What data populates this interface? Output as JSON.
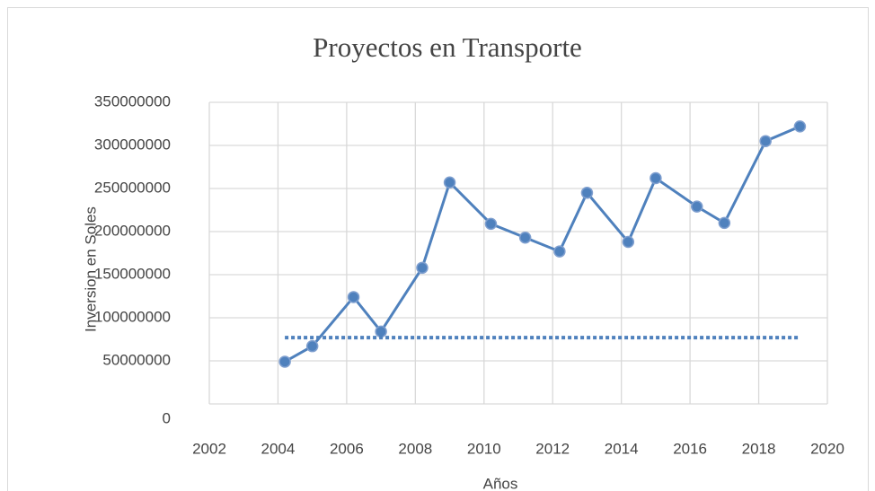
{
  "chart_data": {
    "type": "scatter",
    "title": "Proyectos en Transporte",
    "x_label": "Años",
    "y_label": "Inversion en Soles",
    "series": [
      {
        "color": "#4f81bd",
        "style": "solid",
        "x": [
          2004.2,
          2005.0,
          2006.2,
          2007.0,
          2008.2,
          2009.0,
          2010.2,
          2011.2,
          2012.2,
          2013.0,
          2014.2,
          2015.0,
          2016.2,
          2017.0,
          2018.2,
          2019.2
        ],
        "values": [
          49000000,
          67000000,
          124000000,
          84000000,
          158000000,
          257000000,
          209000000,
          193000000,
          177000000,
          245000000,
          188000000,
          262000000,
          229000000,
          210000000,
          305000000,
          322000000
        ]
      },
      {
        "color": "#4f81bd",
        "style": "dotted",
        "x": [
          2004.2,
          2019.2
        ],
        "values": [
          77000000,
          77000000
        ]
      }
    ],
    "xlim": [
      2002,
      2020
    ],
    "xticks": [
      2002,
      2004,
      2006,
      2008,
      2010,
      2012,
      2014,
      2016,
      2018,
      2020
    ],
    "ylim": [
      0,
      350000000
    ],
    "yticks": [
      0,
      50000000,
      100000000,
      150000000,
      200000000,
      250000000,
      300000000,
      350000000
    ],
    "grid": true
  }
}
